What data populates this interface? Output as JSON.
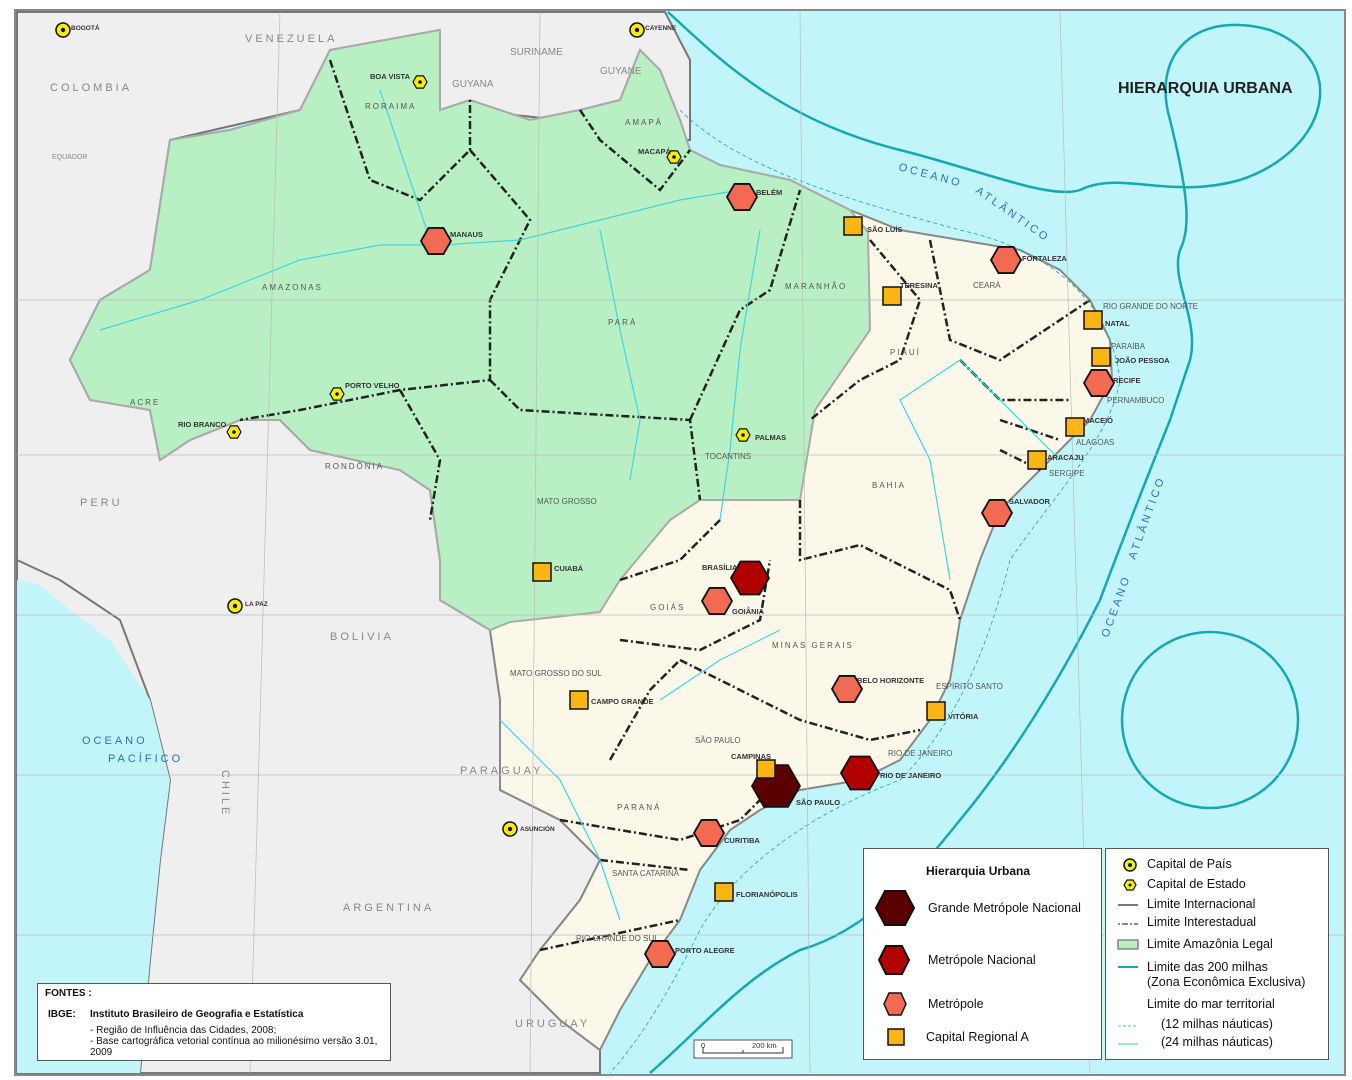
{
  "title": "HIERARQUIA URBANA",
  "colors": {
    "sea": "#c2f5fa",
    "foreign_land": "#efefef",
    "brazil_land": "#fbf8ea",
    "amazonia_legal": "#b8f0c4",
    "grande_metropole_nacional": "#5a0000",
    "metropole_nacional": "#b00000",
    "metropole": "#f26a52",
    "capital_regional_a": "#fbb614",
    "capital_marker": "#f5ee00",
    "eez_line": "#14a8b5"
  },
  "countries": [
    "VENEZUELA",
    "COLOMBIA",
    "EQUADOR",
    "GUYANA",
    "SURINAME",
    "GUYANE",
    "PERU",
    "BOLIVIA",
    "PARAGUAY",
    "CHILE",
    "ARGENTINA",
    "URUGUAY"
  ],
  "oceans": {
    "pacific_1": "OCEANO",
    "pacific_2": "PACÍFICO",
    "atlantic_n1": "OCEANO",
    "atlantic_n2": "ATLÂNTICO",
    "atlantic_e1": "OCEANO",
    "atlantic_e2": "ATLÂNTICO"
  },
  "states": [
    "RORAIMA",
    "AMAPÁ",
    "AMAZONAS",
    "PARÁ",
    "MARANHÃO",
    "CEARÁ",
    "PIAUÍ",
    "ACRE",
    "RONDÔNIA",
    "TOCANTINS",
    "MATO GROSSO",
    "BAHIA",
    "GOIÁS",
    "MINAS GERAIS",
    "MATO GROSSO DO SUL",
    "SÃO PAULO",
    "ESPÍRITO SANTO",
    "RIO DE JANEIRO",
    "PARANÁ",
    "SANTA CATARINA",
    "RIO GRANDE DO SUL",
    "RIO GRANDE DO NORTE",
    "PARAÍBA",
    "PERNAMBUCO",
    "ALAGOAS",
    "SERGIPE"
  ],
  "cities": [
    {
      "name": "BOGOTÁ",
      "type": "capital_pais"
    },
    {
      "name": "CAYENNE",
      "type": "capital_pais"
    },
    {
      "name": "LA PAZ",
      "type": "capital_pais"
    },
    {
      "name": "ASUNCIÓN",
      "type": "capital_pais"
    },
    {
      "name": "BOA VISTA",
      "type": "capital_estado"
    },
    {
      "name": "MACAPÁ",
      "type": "capital_estado"
    },
    {
      "name": "PORTO VELHO",
      "type": "capital_estado"
    },
    {
      "name": "RIO BRANCO",
      "type": "capital_estado"
    },
    {
      "name": "PALMAS",
      "type": "capital_estado"
    },
    {
      "name": "SÃO PAULO",
      "type": "grande_metropole_nacional"
    },
    {
      "name": "BRASÍLIA",
      "type": "metropole_nacional"
    },
    {
      "name": "RIO DE JANEIRO",
      "type": "metropole_nacional"
    },
    {
      "name": "MANAUS",
      "type": "metropole"
    },
    {
      "name": "BELÉM",
      "type": "metropole"
    },
    {
      "name": "FORTALEZA",
      "type": "metropole"
    },
    {
      "name": "RECIFE",
      "type": "metropole"
    },
    {
      "name": "SALVADOR",
      "type": "metropole"
    },
    {
      "name": "GOIÂNIA",
      "type": "metropole"
    },
    {
      "name": "BELO HORIZONTE",
      "type": "metropole"
    },
    {
      "name": "CURITIBA",
      "type": "metropole"
    },
    {
      "name": "PORTO ALEGRE",
      "type": "metropole"
    },
    {
      "name": "SÃO LUÍS",
      "type": "capital_regional_a"
    },
    {
      "name": "TERESINA",
      "type": "capital_regional_a"
    },
    {
      "name": "NATAL",
      "type": "capital_regional_a"
    },
    {
      "name": "JOÃO PESSOA",
      "type": "capital_regional_a"
    },
    {
      "name": "MACEIÓ",
      "type": "capital_regional_a"
    },
    {
      "name": "ARACAJU",
      "type": "capital_regional_a"
    },
    {
      "name": "CUIABÁ",
      "type": "capital_regional_a"
    },
    {
      "name": "CAMPO GRANDE",
      "type": "capital_regional_a"
    },
    {
      "name": "VITÓRIA",
      "type": "capital_regional_a"
    },
    {
      "name": "CAMPINAS",
      "type": "capital_regional_a"
    },
    {
      "name": "FLORIANÓPOLIS",
      "type": "capital_regional_a"
    }
  ],
  "scale": {
    "start": "0",
    "end": "200 km"
  },
  "fontes": {
    "heading": "FONTES :",
    "org_key": "IBGE:",
    "org_name": "Instituto Brasileiro de Geografia e Estatística",
    "source_1": "- Região de Influência das Cidades, 2008;",
    "source_2": "- Base cartográfica vetorial contínua ao milionésimo versão 3.01, 2009"
  },
  "legend_hierarchy": {
    "title": "Hierarquia Urbana",
    "items": [
      "Grande Metrópole Nacional",
      "Metrópole Nacional",
      "Metrópole",
      "Capital Regional A"
    ]
  },
  "legend_symbols": {
    "items": [
      "Capital de País",
      "Capital de Estado",
      "Limite Internacional",
      "Limite Interestadual",
      "Limite Amazônia Legal",
      "Limite das 200 milhas",
      "(Zona Econômica Exclusiva)",
      "Limite do mar territorial",
      "(12 milhas náuticas)",
      "(24 milhas náuticas)"
    ]
  }
}
